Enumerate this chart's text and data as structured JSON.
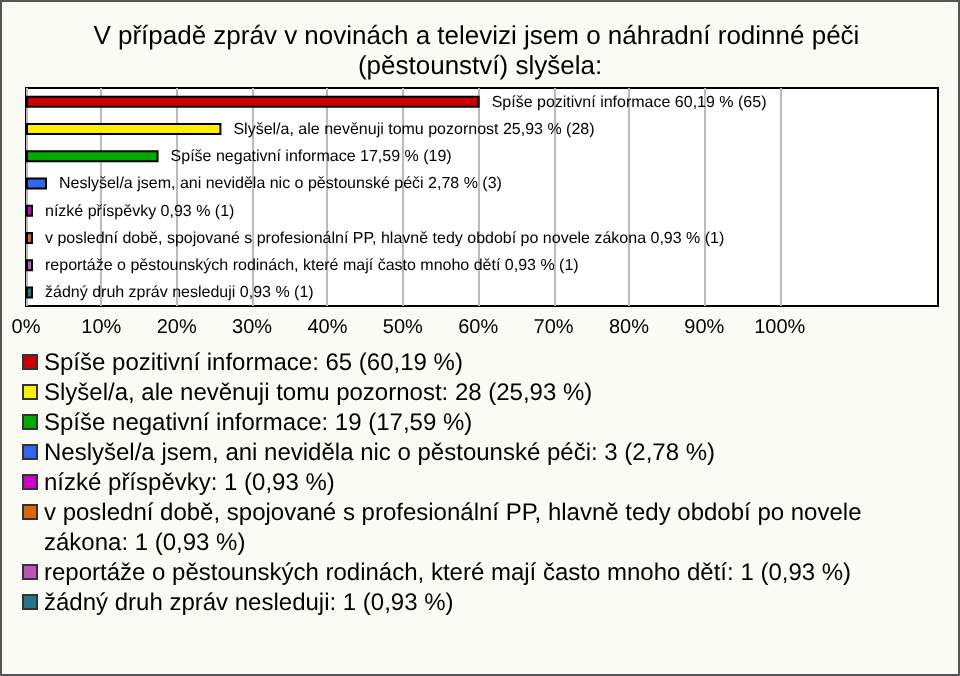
{
  "chart_data": {
    "type": "bar",
    "orientation": "horizontal",
    "title": "V případě zpráv v novinách a televizi jsem o náhradní rodinné péči (pěstounství) slyšela:",
    "categories": [
      "Spíše pozitivní informace",
      "Slyšel/a, ale nevěnuji tomu pozornost",
      "Spíše negativní informace",
      "Neslyšel/a jsem, ani neviděla nic o pěstounské péči",
      "nízké příspěvky",
      "v poslední době, spojované s profesionální PP, hlavně tedy období po novele zákona",
      "reportáže o pěstounských rodinách, které mají často mnoho dětí",
      "žádný druh zpráv nesleduji"
    ],
    "values": [
      60.19,
      25.93,
      17.59,
      2.78,
      0.93,
      0.93,
      0.93,
      0.93
    ],
    "value_labels": [
      "60,19 % (65)",
      "25,93 % (28)",
      "17,59 % (19)",
      "2,78 % (3)",
      "0,93 % (1)",
      "0,93 % (1)",
      "0,93 % (1)",
      "0,93 % (1)"
    ],
    "colors": [
      "#cc0000",
      "#ffee00",
      "#00aa00",
      "#3366ee",
      "#cc00cc",
      "#dd6600",
      "#bb55bb",
      "#227788"
    ],
    "xlim": [
      0,
      121
    ],
    "xticks": [
      {
        "value": 0,
        "label": "0%"
      },
      {
        "value": 10,
        "label": "10%"
      },
      {
        "value": 20,
        "label": "20%"
      },
      {
        "value": 30,
        "label": "30%"
      },
      {
        "value": 40,
        "label": "40%"
      },
      {
        "value": 50,
        "label": "50%"
      },
      {
        "value": 60,
        "label": "60%"
      },
      {
        "value": 70,
        "label": "70%"
      },
      {
        "value": 80,
        "label": "80%"
      },
      {
        "value": 90,
        "label": "90%"
      },
      {
        "value": 100,
        "label": "100%"
      }
    ],
    "grid": "x",
    "tick_labels": "x",
    "annotations": [
      "Spíše pozitivní informace: 65 (60,19 %)",
      "Slyšel/a, ale nevěnuji tomu pozornost: 28 (25,93 %)",
      "Spíše negativní informace: 19 (17,59 %)",
      "Neslyšel/a jsem, ani neviděla nic o pěstounské péči: 3 (2,78 %)",
      "nízké příspěvky: 1 (0,93 %)",
      "v poslední době, spojované s profesionální PP, hlavně tedy období po novele zákona: 1 (0,93 %)",
      "reportáže o pěstounských rodinách, které mají často mnoho dětí: 1 (0,93 %)",
      "žádný druh zpráv nesleduji: 1 (0,93 %)"
    ]
  }
}
